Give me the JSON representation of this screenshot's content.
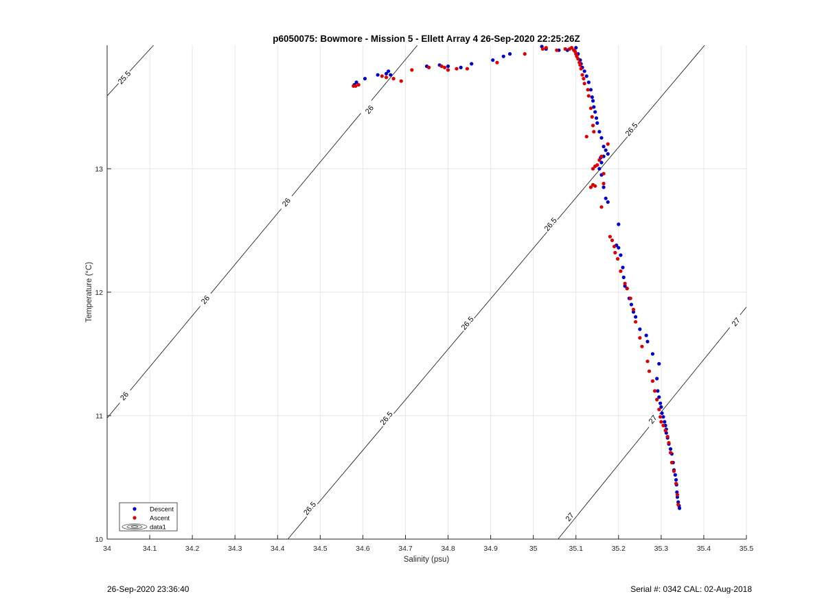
{
  "chart_data": {
    "type": "scatter",
    "title": "p6050075: Bowmore - Mission 5 - Ellett Array 4 26-Sep-2020 22:25:26Z",
    "xlabel": "Salinity (psu)",
    "ylabel": "Temperature (°C)",
    "xlim": [
      34,
      35.5
    ],
    "ylim": [
      10,
      14
    ],
    "x_ticks": [
      34,
      34.1,
      34.2,
      34.3,
      34.4,
      34.5,
      34.6,
      34.7,
      34.8,
      34.9,
      35,
      35.1,
      35.2,
      35.3,
      35.4,
      35.5
    ],
    "y_ticks": [
      10,
      11,
      12,
      13
    ],
    "x_tick_labels": [
      "34",
      "34.1",
      "34.2",
      "34.3",
      "34.4",
      "34.5",
      "34.6",
      "34.7",
      "34.8",
      "34.9",
      "35",
      "35.1",
      "35.2",
      "35.3",
      "35.4",
      "35.5"
    ],
    "y_tick_labels": [
      "10",
      "11",
      "12",
      "13"
    ],
    "grid": true,
    "legend_position": "bottom-left",
    "legend": [
      {
        "label": "Descent",
        "color": "#0000cc",
        "marker": "dot"
      },
      {
        "label": "Ascent",
        "color": "#dd0000",
        "marker": "dot"
      },
      {
        "label": "data1",
        "marker": "contour"
      }
    ],
    "contours": [
      {
        "label": "25.5",
        "points": [
          [
            34.0,
            13.59
          ],
          [
            34.109,
            14.0
          ]
        ],
        "labels_at": [
          [
            34.04,
            13.74
          ]
        ]
      },
      {
        "label": "26",
        "points": [
          [
            34.0,
            10.98
          ],
          [
            34.728,
            14.0
          ]
        ],
        "labels_at": [
          [
            34.04,
            11.16
          ],
          [
            34.23,
            11.94
          ],
          [
            34.42,
            12.73
          ],
          [
            34.615,
            13.48
          ]
        ]
      },
      {
        "label": "26.5",
        "points": [
          [
            34.424,
            10.0
          ],
          [
            35.402,
            14.0
          ]
        ],
        "labels_at": [
          [
            34.475,
            10.25
          ],
          [
            34.655,
            10.98
          ],
          [
            34.845,
            11.75
          ],
          [
            35.04,
            12.55
          ],
          [
            35.23,
            13.32
          ]
        ]
      },
      {
        "label": "27",
        "points": [
          [
            35.058,
            10.0
          ],
          [
            35.5,
            11.88
          ]
        ],
        "labels_at": [
          [
            35.085,
            10.18
          ],
          [
            35.28,
            10.97
          ],
          [
            35.475,
            11.76
          ]
        ]
      }
    ],
    "series": [
      {
        "name": "Descent",
        "color": "#0000cc",
        "points": [
          [
            34.58,
            13.68
          ],
          [
            34.585,
            13.7
          ],
          [
            34.605,
            13.73
          ],
          [
            34.635,
            13.76
          ],
          [
            34.655,
            13.77
          ],
          [
            34.66,
            13.79
          ],
          [
            34.665,
            13.76
          ],
          [
            34.75,
            13.83
          ],
          [
            34.78,
            13.84
          ],
          [
            34.8,
            13.83
          ],
          [
            34.83,
            13.82
          ],
          [
            34.855,
            13.85
          ],
          [
            34.905,
            13.88
          ],
          [
            34.93,
            13.91
          ],
          [
            34.945,
            13.93
          ],
          [
            35.02,
            13.99
          ],
          [
            35.03,
            13.97
          ],
          [
            35.06,
            13.96
          ],
          [
            35.08,
            13.96
          ],
          [
            35.1,
            13.98
          ],
          [
            35.105,
            13.93
          ],
          [
            35.11,
            13.88
          ],
          [
            35.112,
            13.85
          ],
          [
            35.115,
            13.82
          ],
          [
            35.12,
            13.79
          ],
          [
            35.125,
            13.75
          ],
          [
            35.13,
            13.7
          ],
          [
            35.135,
            13.64
          ],
          [
            35.138,
            13.58
          ],
          [
            35.14,
            13.55
          ],
          [
            35.142,
            13.5
          ],
          [
            35.145,
            13.46
          ],
          [
            35.148,
            13.41
          ],
          [
            35.15,
            13.37
          ],
          [
            35.155,
            13.3
          ],
          [
            35.16,
            13.25
          ],
          [
            35.165,
            13.18
          ],
          [
            35.17,
            13.15
          ],
          [
            35.158,
            13.09
          ],
          [
            35.165,
            13.1
          ],
          [
            35.175,
            13.12
          ],
          [
            35.16,
            13.05
          ],
          [
            35.155,
            13.0
          ],
          [
            35.16,
            12.95
          ],
          [
            35.165,
            12.85
          ],
          [
            35.17,
            12.76
          ],
          [
            35.175,
            12.73
          ],
          [
            35.2,
            12.55
          ],
          [
            35.195,
            12.38
          ],
          [
            35.2,
            12.36
          ],
          [
            35.205,
            12.3
          ],
          [
            35.21,
            12.2
          ],
          [
            35.212,
            12.12
          ],
          [
            35.215,
            12.05
          ],
          [
            35.22,
            12.03
          ],
          [
            35.225,
            11.95
          ],
          [
            35.23,
            11.9
          ],
          [
            35.235,
            11.84
          ],
          [
            35.24,
            11.8
          ],
          [
            35.25,
            11.7
          ],
          [
            35.265,
            11.65
          ],
          [
            35.268,
            11.6
          ],
          [
            35.28,
            11.5
          ],
          [
            35.295,
            11.42
          ],
          [
            35.29,
            11.3
          ],
          [
            35.292,
            11.2
          ],
          [
            35.295,
            11.15
          ],
          [
            35.298,
            11.1
          ],
          [
            35.3,
            11.07
          ],
          [
            35.302,
            11.02
          ],
          [
            35.305,
            10.99
          ],
          [
            35.308,
            10.95
          ],
          [
            35.31,
            10.92
          ],
          [
            35.312,
            10.89
          ],
          [
            35.312,
            10.86
          ],
          [
            35.315,
            10.82
          ],
          [
            35.318,
            10.77
          ],
          [
            35.322,
            10.73
          ],
          [
            35.325,
            10.69
          ],
          [
            35.328,
            10.62
          ],
          [
            35.33,
            10.56
          ],
          [
            35.333,
            10.52
          ],
          [
            35.335,
            10.48
          ],
          [
            35.336,
            10.44
          ],
          [
            35.337,
            10.38
          ],
          [
            35.338,
            10.34
          ],
          [
            35.34,
            10.3
          ],
          [
            35.342,
            10.27
          ],
          [
            35.343,
            10.25
          ]
        ]
      },
      {
        "name": "Ascent",
        "color": "#dd0000",
        "points": [
          [
            34.578,
            13.67
          ],
          [
            34.583,
            13.67
          ],
          [
            34.59,
            13.68
          ],
          [
            34.645,
            13.75
          ],
          [
            34.655,
            13.74
          ],
          [
            34.672,
            13.73
          ],
          [
            34.69,
            13.71
          ],
          [
            34.715,
            13.8
          ],
          [
            34.755,
            13.82
          ],
          [
            34.785,
            13.83
          ],
          [
            34.792,
            13.82
          ],
          [
            34.8,
            13.8
          ],
          [
            34.82,
            13.81
          ],
          [
            34.845,
            13.81
          ],
          [
            34.915,
            13.86
          ],
          [
            34.98,
            13.93
          ],
          [
            35.022,
            13.97
          ],
          [
            35.03,
            13.98
          ],
          [
            35.055,
            13.96
          ],
          [
            35.075,
            13.97
          ],
          [
            35.085,
            13.97
          ],
          [
            35.09,
            13.98
          ],
          [
            35.095,
            13.96
          ],
          [
            35.098,
            13.95
          ],
          [
            35.1,
            13.93
          ],
          [
            35.102,
            13.91
          ],
          [
            35.105,
            13.89
          ],
          [
            35.108,
            13.86
          ],
          [
            35.11,
            13.84
          ],
          [
            35.112,
            13.81
          ],
          [
            35.115,
            13.76
          ],
          [
            35.118,
            13.73
          ],
          [
            35.12,
            13.69
          ],
          [
            35.128,
            13.64
          ],
          [
            35.13,
            13.59
          ],
          [
            35.135,
            13.49
          ],
          [
            35.138,
            13.42
          ],
          [
            35.14,
            13.35
          ],
          [
            35.142,
            13.3
          ],
          [
            35.125,
            13.26
          ],
          [
            35.175,
            13.2
          ],
          [
            35.16,
            13.1
          ],
          [
            35.155,
            13.07
          ],
          [
            35.15,
            13.03
          ],
          [
            35.14,
            13.0
          ],
          [
            35.145,
            13.02
          ],
          [
            35.165,
            12.96
          ],
          [
            35.165,
            12.88
          ],
          [
            35.14,
            12.87
          ],
          [
            35.135,
            12.85
          ],
          [
            35.145,
            12.86
          ],
          [
            35.16,
            12.69
          ],
          [
            35.18,
            12.45
          ],
          [
            35.185,
            12.42
          ],
          [
            35.19,
            12.37
          ],
          [
            35.192,
            12.32
          ],
          [
            35.198,
            12.27
          ],
          [
            35.205,
            12.17
          ],
          [
            35.215,
            12.07
          ],
          [
            35.22,
            12.03
          ],
          [
            35.228,
            11.95
          ],
          [
            35.235,
            11.86
          ],
          [
            35.24,
            11.76
          ],
          [
            35.25,
            11.63
          ],
          [
            35.255,
            11.56
          ],
          [
            35.268,
            11.44
          ],
          [
            35.272,
            11.36
          ],
          [
            35.28,
            11.28
          ],
          [
            35.285,
            11.2
          ],
          [
            35.29,
            11.13
          ],
          [
            35.295,
            11.05
          ],
          [
            35.298,
            10.99
          ],
          [
            35.3,
            10.95
          ],
          [
            35.305,
            10.92
          ],
          [
            35.31,
            10.88
          ],
          [
            35.315,
            10.83
          ],
          [
            35.318,
            10.78
          ],
          [
            35.322,
            10.7
          ],
          [
            35.325,
            10.62
          ],
          [
            35.33,
            10.55
          ],
          [
            35.335,
            10.45
          ],
          [
            35.338,
            10.36
          ],
          [
            35.34,
            10.28
          ]
        ]
      }
    ]
  },
  "footer": {
    "left": "26-Sep-2020 23:36:40",
    "right": "Serial #: 0342  CAL: 02-Aug-2018"
  }
}
